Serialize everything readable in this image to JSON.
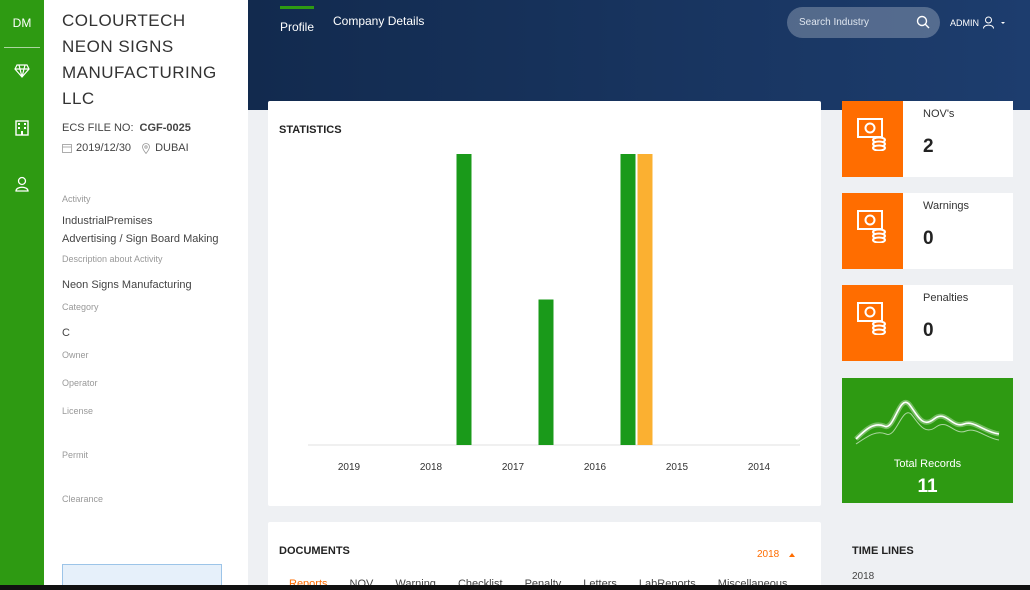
{
  "nav": {
    "logo": "DM",
    "icons": [
      "diamond-icon",
      "building-icon",
      "user-icon"
    ]
  },
  "profile": {
    "company_name": "COLOURTECH NEON SIGNS MANUFACTURING LLC",
    "ecs_label": "ECS FILE NO:",
    "ecs_value": "CGF-0025",
    "date": "2019/12/30",
    "location": "DUBAI",
    "activity_label": "Activity",
    "activity_value_1": "IndustrialPremises",
    "activity_value_2": "Advertising / Sign Board Making",
    "description_label": "Description about Activity",
    "description_value": "Neon Signs Manufacturing",
    "category_label": "Category",
    "category_value": "C",
    "owner_label": "Owner",
    "operator_label": "Operator",
    "license_label": "License",
    "permit_label": "Permit",
    "clearance_label": "Clearance"
  },
  "header": {
    "tabs": [
      {
        "label": "Profile"
      },
      {
        "label": "Company Details"
      }
    ],
    "search_placeholder": "Search Industry",
    "user": "ADMIN"
  },
  "statistics": {
    "title": "STATISTICS"
  },
  "chart_data": {
    "type": "bar",
    "categories": [
      "2019",
      "2018",
      "2017",
      "2016",
      "2015",
      "2014"
    ],
    "series": [
      {
        "color": "#1a9a1a",
        "values": [
          0,
          2,
          1,
          2,
          0,
          0
        ]
      },
      {
        "color": "#fbb031",
        "values": [
          0,
          0,
          0,
          2,
          0,
          0
        ]
      }
    ],
    "ylim": [
      0,
      2
    ],
    "grid": false
  },
  "kpis": [
    {
      "label": "NOV's",
      "value": "2"
    },
    {
      "label": "Warnings",
      "value": "0"
    },
    {
      "label": "Penalties",
      "value": "0"
    }
  ],
  "total": {
    "label": "Total Records",
    "value": "11"
  },
  "documents": {
    "title": "DOCUMENTS",
    "year": "2018",
    "tabs": [
      "Reports",
      "NOV",
      "Warning",
      "Checklist",
      "Penalty",
      "Letters",
      "LabReports",
      "Miscellaneous"
    ]
  },
  "timelines": {
    "title": "TIME LINES",
    "year": "2018"
  },
  "colors": {
    "green": "#2e9a12",
    "orange": "#ff6d00",
    "navy": "#122a4e"
  }
}
